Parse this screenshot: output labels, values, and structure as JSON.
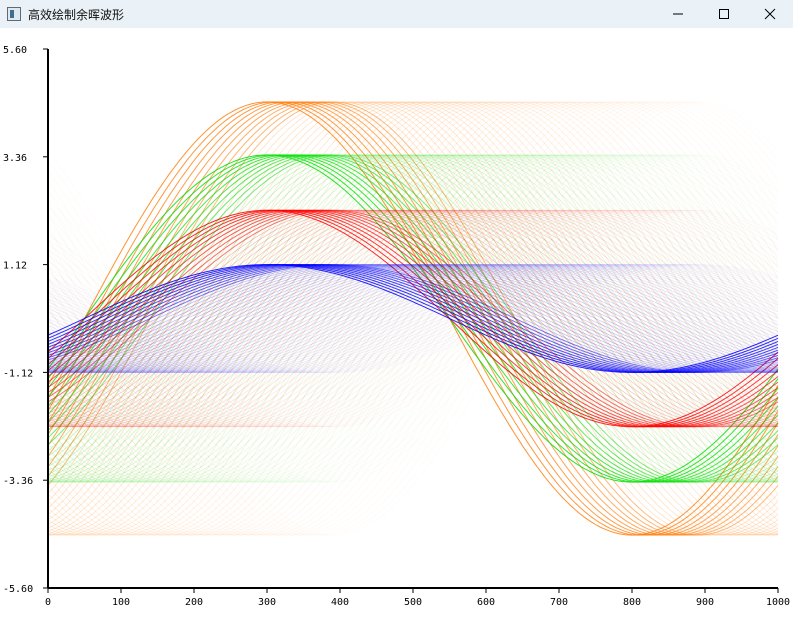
{
  "window": {
    "title": "高效绘制余晖波形",
    "icons": {
      "app": "app-window-icon",
      "minimize": "minimize-icon",
      "maximize": "maximize-icon",
      "close": "close-icon"
    }
  },
  "chart_data": {
    "type": "line",
    "title": "",
    "xlabel": "",
    "ylabel": "",
    "xlim": [
      0,
      1000
    ],
    "ylim": [
      -5.6,
      5.6
    ],
    "x_ticks": [
      "0",
      "100",
      "200",
      "300",
      "400",
      "500",
      "600",
      "700",
      "800",
      "900",
      "1000"
    ],
    "y_ticks": [
      "5.60",
      "3.36",
      "1.12",
      "-1.12",
      "-3.36",
      "-5.60"
    ],
    "y_tick_values": [
      5.6,
      3.36,
      1.12,
      -1.12,
      -3.36,
      -5.6
    ],
    "grid": false,
    "period": 1000,
    "trace_count": 60,
    "bright_traces": 10,
    "series": [
      {
        "amplitude": 4.5,
        "peak_x_latest": 300,
        "peak_x_oldest": 890,
        "color": "#ff7f0e"
      },
      {
        "amplitude": 3.4,
        "peak_x_latest": 300,
        "peak_x_oldest": 890,
        "color": "#00e000"
      },
      {
        "amplitude": 2.25,
        "peak_x_latest": 300,
        "peak_x_oldest": 890,
        "color": "#ff0000"
      },
      {
        "amplitude": 1.12,
        "peak_x_latest": 300,
        "peak_x_oldest": 890,
        "color": "#0000ff"
      }
    ]
  }
}
